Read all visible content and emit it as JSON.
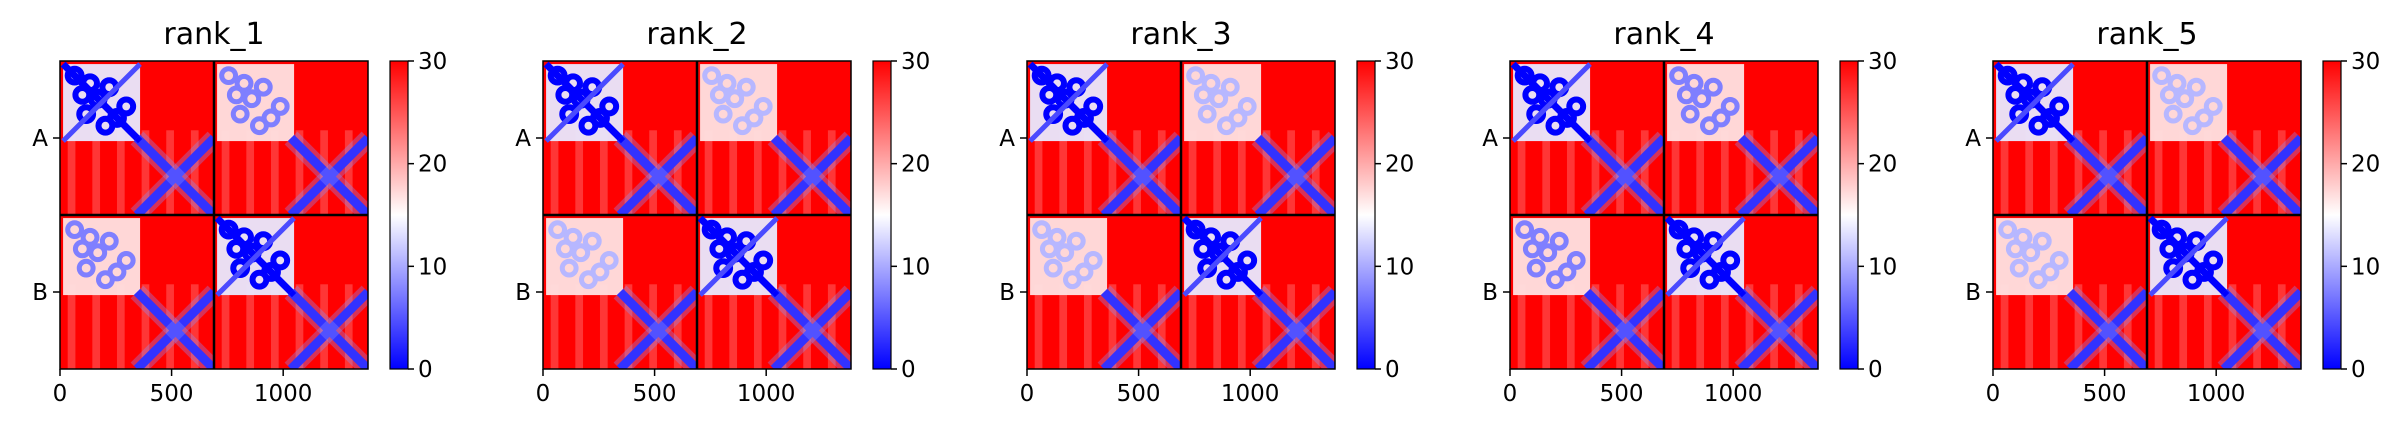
{
  "chart_data": [
    {
      "type": "heatmap",
      "title": "rank_1",
      "x_ticks": [
        0,
        500,
        1000
      ],
      "y_tick_labels": [
        "A",
        "B"
      ],
      "chain_lengths": [
        690,
        690
      ],
      "xlim": [
        0,
        1380
      ],
      "colorbar": {
        "range": [
          0,
          30
        ],
        "ticks": [
          0,
          10,
          20,
          30
        ],
        "colormap": "bwr"
      },
      "inter_chain_block": "bright"
    },
    {
      "type": "heatmap",
      "title": "rank_2",
      "x_ticks": [
        0,
        500,
        1000
      ],
      "y_tick_labels": [
        "A",
        "B"
      ],
      "chain_lengths": [
        690,
        690
      ],
      "xlim": [
        0,
        1380
      ],
      "colorbar": {
        "range": [
          0,
          30
        ],
        "ticks": [
          0,
          10,
          20,
          30
        ],
        "colormap": "bwr"
      },
      "inter_chain_block": "pale"
    },
    {
      "type": "heatmap",
      "title": "rank_3",
      "x_ticks": [
        0,
        500,
        1000
      ],
      "y_tick_labels": [
        "A",
        "B"
      ],
      "chain_lengths": [
        690,
        690
      ],
      "xlim": [
        0,
        1380
      ],
      "colorbar": {
        "range": [
          0,
          30
        ],
        "ticks": [
          0,
          10,
          20,
          30
        ],
        "colormap": "bwr"
      },
      "inter_chain_block": "pale"
    },
    {
      "type": "heatmap",
      "title": "rank_4",
      "x_ticks": [
        0,
        500,
        1000
      ],
      "y_tick_labels": [
        "A",
        "B"
      ],
      "chain_lengths": [
        690,
        690
      ],
      "xlim": [
        0,
        1380
      ],
      "colorbar": {
        "range": [
          0,
          30
        ],
        "ticks": [
          0,
          10,
          20,
          30
        ],
        "colormap": "bwr"
      },
      "inter_chain_block": "bright"
    },
    {
      "type": "heatmap",
      "title": "rank_5",
      "x_ticks": [
        0,
        500,
        1000
      ],
      "y_tick_labels": [
        "A",
        "B"
      ],
      "chain_lengths": [
        690,
        690
      ],
      "xlim": [
        0,
        1380
      ],
      "colorbar": {
        "range": [
          0,
          30
        ],
        "ticks": [
          0,
          10,
          20,
          30
        ],
        "colormap": "bwr"
      },
      "inter_chain_block": "pale"
    }
  ],
  "colors": {
    "low": "#0000ff",
    "mid": "#ffffff",
    "high": "#ff0000"
  }
}
